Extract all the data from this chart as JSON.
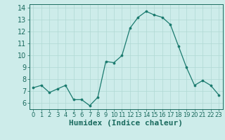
{
  "x": [
    0,
    1,
    2,
    3,
    4,
    5,
    6,
    7,
    8,
    9,
    10,
    11,
    12,
    13,
    14,
    15,
    16,
    17,
    18,
    19,
    20,
    21,
    22,
    23
  ],
  "y": [
    7.3,
    7.5,
    6.9,
    7.2,
    7.5,
    6.3,
    6.3,
    5.8,
    6.5,
    9.5,
    9.4,
    10.0,
    12.3,
    13.2,
    13.7,
    13.4,
    13.2,
    12.6,
    10.8,
    9.0,
    7.5,
    7.9,
    7.5,
    6.7
  ],
  "line_color": "#1a7a6e",
  "marker_color": "#1a7a6e",
  "bg_color": "#cdecea",
  "grid_color": "#b0d8d4",
  "tick_color": "#1a6a5e",
  "xlabel": "Humidex (Indice chaleur)",
  "xlim": [
    -0.5,
    23.5
  ],
  "ylim": [
    5.5,
    14.3
  ],
  "yticks": [
    6,
    7,
    8,
    9,
    10,
    11,
    12,
    13,
    14
  ],
  "xticks": [
    0,
    1,
    2,
    3,
    4,
    5,
    6,
    7,
    8,
    9,
    10,
    11,
    12,
    13,
    14,
    15,
    16,
    17,
    18,
    19,
    20,
    21,
    22,
    23
  ],
  "font_size": 7,
  "xlabel_fontsize": 8
}
